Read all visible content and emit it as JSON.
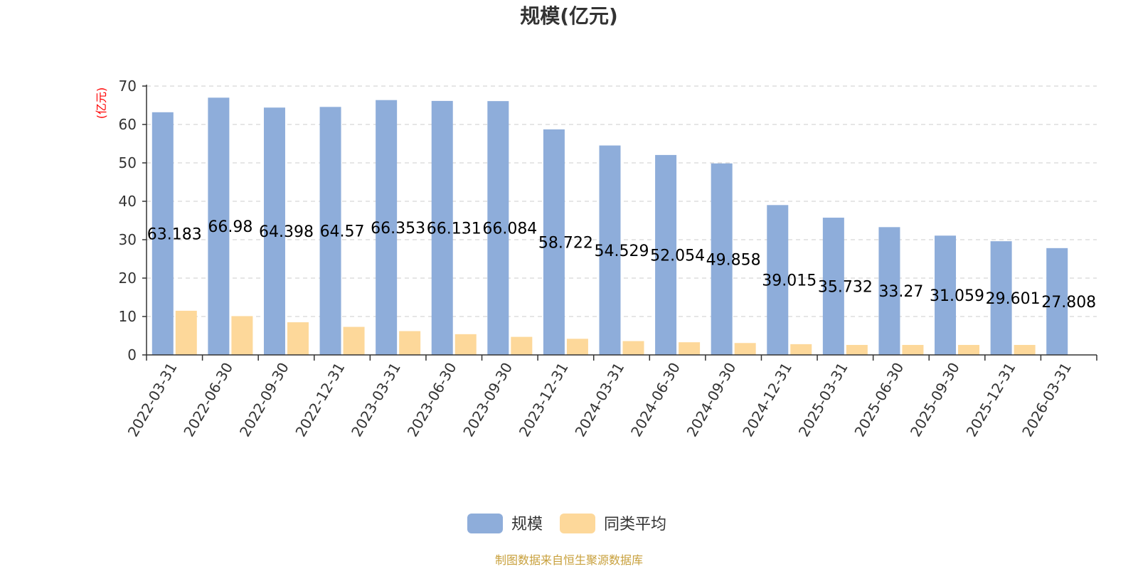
{
  "chart_data": {
    "type": "bar",
    "title": "规模(亿元)",
    "ylabel": "(亿元)",
    "xlabel": "",
    "ylim": [
      0,
      70
    ],
    "yticks": [
      0,
      10,
      20,
      30,
      40,
      50,
      60,
      70
    ],
    "grid": true,
    "legend_position": "bottom",
    "categories": [
      "2022-03-31",
      "2022-06-30",
      "2022-09-30",
      "2022-12-31",
      "2023-03-31",
      "2023-06-30",
      "2023-09-30",
      "2023-12-31",
      "2024-03-31",
      "2024-06-30",
      "2024-09-30",
      "2024-12-31",
      "2025-03-31",
      "2025-06-30",
      "2025-09-30",
      "2025-12-31",
      "2026-03-31"
    ],
    "series": [
      {
        "name": "规模",
        "color": "#8eadda",
        "values": [
          63.183,
          66.98,
          64.398,
          64.57,
          66.353,
          66.131,
          66.084,
          58.722,
          54.529,
          52.054,
          49.858,
          39.015,
          35.732,
          33.27,
          31.059,
          29.601,
          27.808
        ],
        "labels": [
          "63.183",
          "66.98",
          "64.398",
          "64.57",
          "66.353",
          "66.131",
          "66.084",
          "58.722",
          "54.529",
          "52.054",
          "49.858",
          "39.015",
          "35.732",
          "33.27",
          "31.059",
          "29.601",
          "27.808"
        ]
      },
      {
        "name": "同类平均",
        "color": "#fdd89a",
        "values": [
          11.5,
          10.1,
          8.5,
          7.3,
          6.2,
          5.4,
          4.7,
          4.2,
          3.6,
          3.3,
          3.1,
          2.8,
          2.6,
          2.6,
          2.6,
          2.6,
          null
        ]
      }
    ]
  },
  "source": "制图数据来自恒生聚源数据库"
}
